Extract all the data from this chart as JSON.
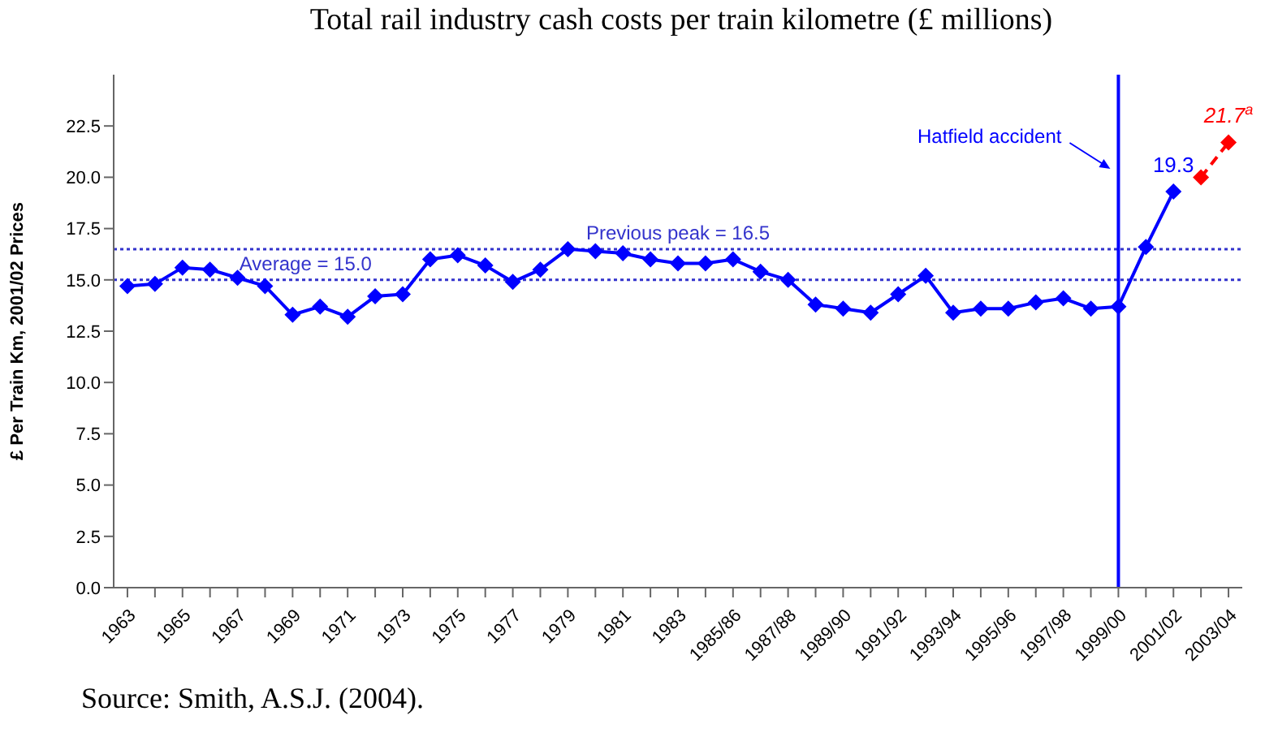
{
  "chart_data": {
    "type": "line",
    "title": "Total rail industry cash costs per train kilometre (£ millions)",
    "ylabel": "£ Per Train Km, 2001/02 Prices",
    "annotations": [
      "Source: Smith, A.S.J. (2004)."
    ],
    "categories": [
      "1963",
      null,
      "1965",
      null,
      "1967",
      null,
      "1969",
      null,
      "1971",
      null,
      "1973",
      null,
      "1975",
      null,
      "1977",
      null,
      "1979",
      null,
      "1981",
      null,
      "1983",
      null,
      "1985/86",
      null,
      "1987/88",
      null,
      "1989/90",
      null,
      "1991/92",
      null,
      "1993/94",
      null,
      "1995/96",
      null,
      "1997/98",
      null,
      "1999/00",
      null,
      "2001/02",
      null,
      "2003/04"
    ],
    "series": [
      {
        "color": "#0000ff",
        "values": [
          14.7,
          14.8,
          15.6,
          15.5,
          15.1,
          14.7,
          13.3,
          13.7,
          13.2,
          14.2,
          14.3,
          16.0,
          16.2,
          15.7,
          14.9,
          15.5,
          16.5,
          16.4,
          16.3,
          16.0,
          15.8,
          15.8,
          16.0,
          15.4,
          15.0,
          13.8,
          13.6,
          13.4,
          14.3,
          15.2,
          13.4,
          13.6,
          13.6,
          13.9,
          14.1,
          13.6,
          13.7,
          16.6,
          19.3,
          null,
          null
        ],
        "value_labels": [
          null,
          null,
          null,
          null,
          null,
          null,
          null,
          null,
          null,
          null,
          null,
          null,
          null,
          null,
          null,
          null,
          null,
          null,
          null,
          null,
          null,
          null,
          null,
          null,
          null,
          null,
          null,
          null,
          null,
          null,
          null,
          null,
          null,
          null,
          null,
          null,
          null,
          null,
          "19.3",
          null,
          null
        ]
      },
      {
        "color": "#ff0000",
        "line_style": "dashed",
        "values": [
          null,
          null,
          null,
          null,
          null,
          null,
          null,
          null,
          null,
          null,
          null,
          null,
          null,
          null,
          null,
          null,
          null,
          null,
          null,
          null,
          null,
          null,
          null,
          null,
          null,
          null,
          null,
          null,
          null,
          null,
          null,
          null,
          null,
          null,
          null,
          null,
          null,
          null,
          null,
          20.0,
          21.7
        ],
        "value_labels": [
          null,
          null,
          null,
          null,
          null,
          null,
          null,
          null,
          null,
          null,
          null,
          null,
          null,
          null,
          null,
          null,
          null,
          null,
          null,
          null,
          null,
          null,
          null,
          null,
          null,
          null,
          null,
          null,
          null,
          null,
          null,
          null,
          null,
          null,
          null,
          null,
          null,
          null,
          null,
          null,
          "21.7$^{a}$"
        ]
      }
    ],
    "ylim": [
      0,
      25
    ],
    "yticks": [
      {
        "value": 0,
        "label": "0.0"
      },
      {
        "value": 2.5,
        "label": "2.5"
      },
      {
        "value": 5,
        "label": "5.0"
      },
      {
        "value": 7.5,
        "label": "7.5"
      },
      {
        "value": 10,
        "label": "10.0"
      },
      {
        "value": 12.5,
        "label": "12.5"
      },
      {
        "value": 15,
        "label": "15.0"
      },
      {
        "value": 17.5,
        "label": "17.5"
      },
      {
        "value": 20,
        "label": "20.0"
      },
      {
        "value": 22.5,
        "label": "22.5"
      }
    ],
    "ref_lines": [
      {
        "axis": "y",
        "value": 16.5,
        "label": "Previous peak = 16.5",
        "color": "#3333cc",
        "line_style": "dotted"
      },
      {
        "axis": "y",
        "value": 15.0,
        "label": "Average = 15.0",
        "color": "#3333cc",
        "line_style": "dotted"
      },
      {
        "axis": "x",
        "value": "1999/00",
        "label": "Hatfield accident",
        "color": "#0000ff",
        "line_style": "solid"
      }
    ],
    "marker": "diamond",
    "line_style": "solid"
  }
}
